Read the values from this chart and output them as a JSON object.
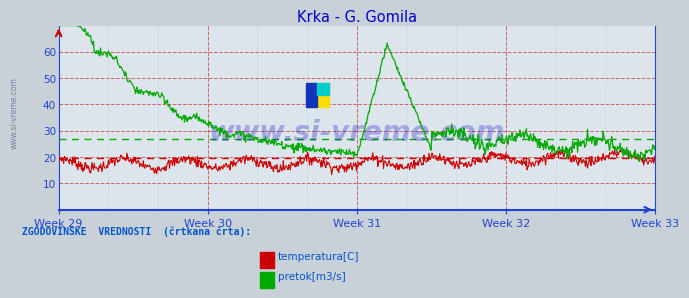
{
  "title": "Krka - G. Gomila",
  "title_color": "#0000cc",
  "bg_color": "#c8d0d8",
  "plot_bg_color": "#dce4ec",
  "xlabel": "",
  "ylabel": "",
  "ylim": [
    0,
    70
  ],
  "yticks": [
    10,
    20,
    30,
    40,
    50,
    60
  ],
  "week_labels": [
    "Week 29",
    "Week 30",
    "Week 31",
    "Week 32",
    "Week 33"
  ],
  "week_positions": [
    0,
    84,
    168,
    252,
    336
  ],
  "n_points": 840,
  "temp_color": "#cc0000",
  "flow_color": "#00aa00",
  "temp_historical_value": 19.5,
  "flow_historical_value": 26.8,
  "watermark": "www.si-vreme.com",
  "watermark_color": "#1a1acc",
  "legend_label_color": "#0055cc",
  "legend_text": "ZGODOVINSKE  VREDNOSTI  (črtkana črta):",
  "legend_temp": "temperatura[C]",
  "legend_flow": "pretok[m3/s]",
  "grid_color_h": "#cc5555",
  "grid_color_v": "#cc5555",
  "grid_color_minor_v": "#aabbcc",
  "axis_color": "#2244cc"
}
